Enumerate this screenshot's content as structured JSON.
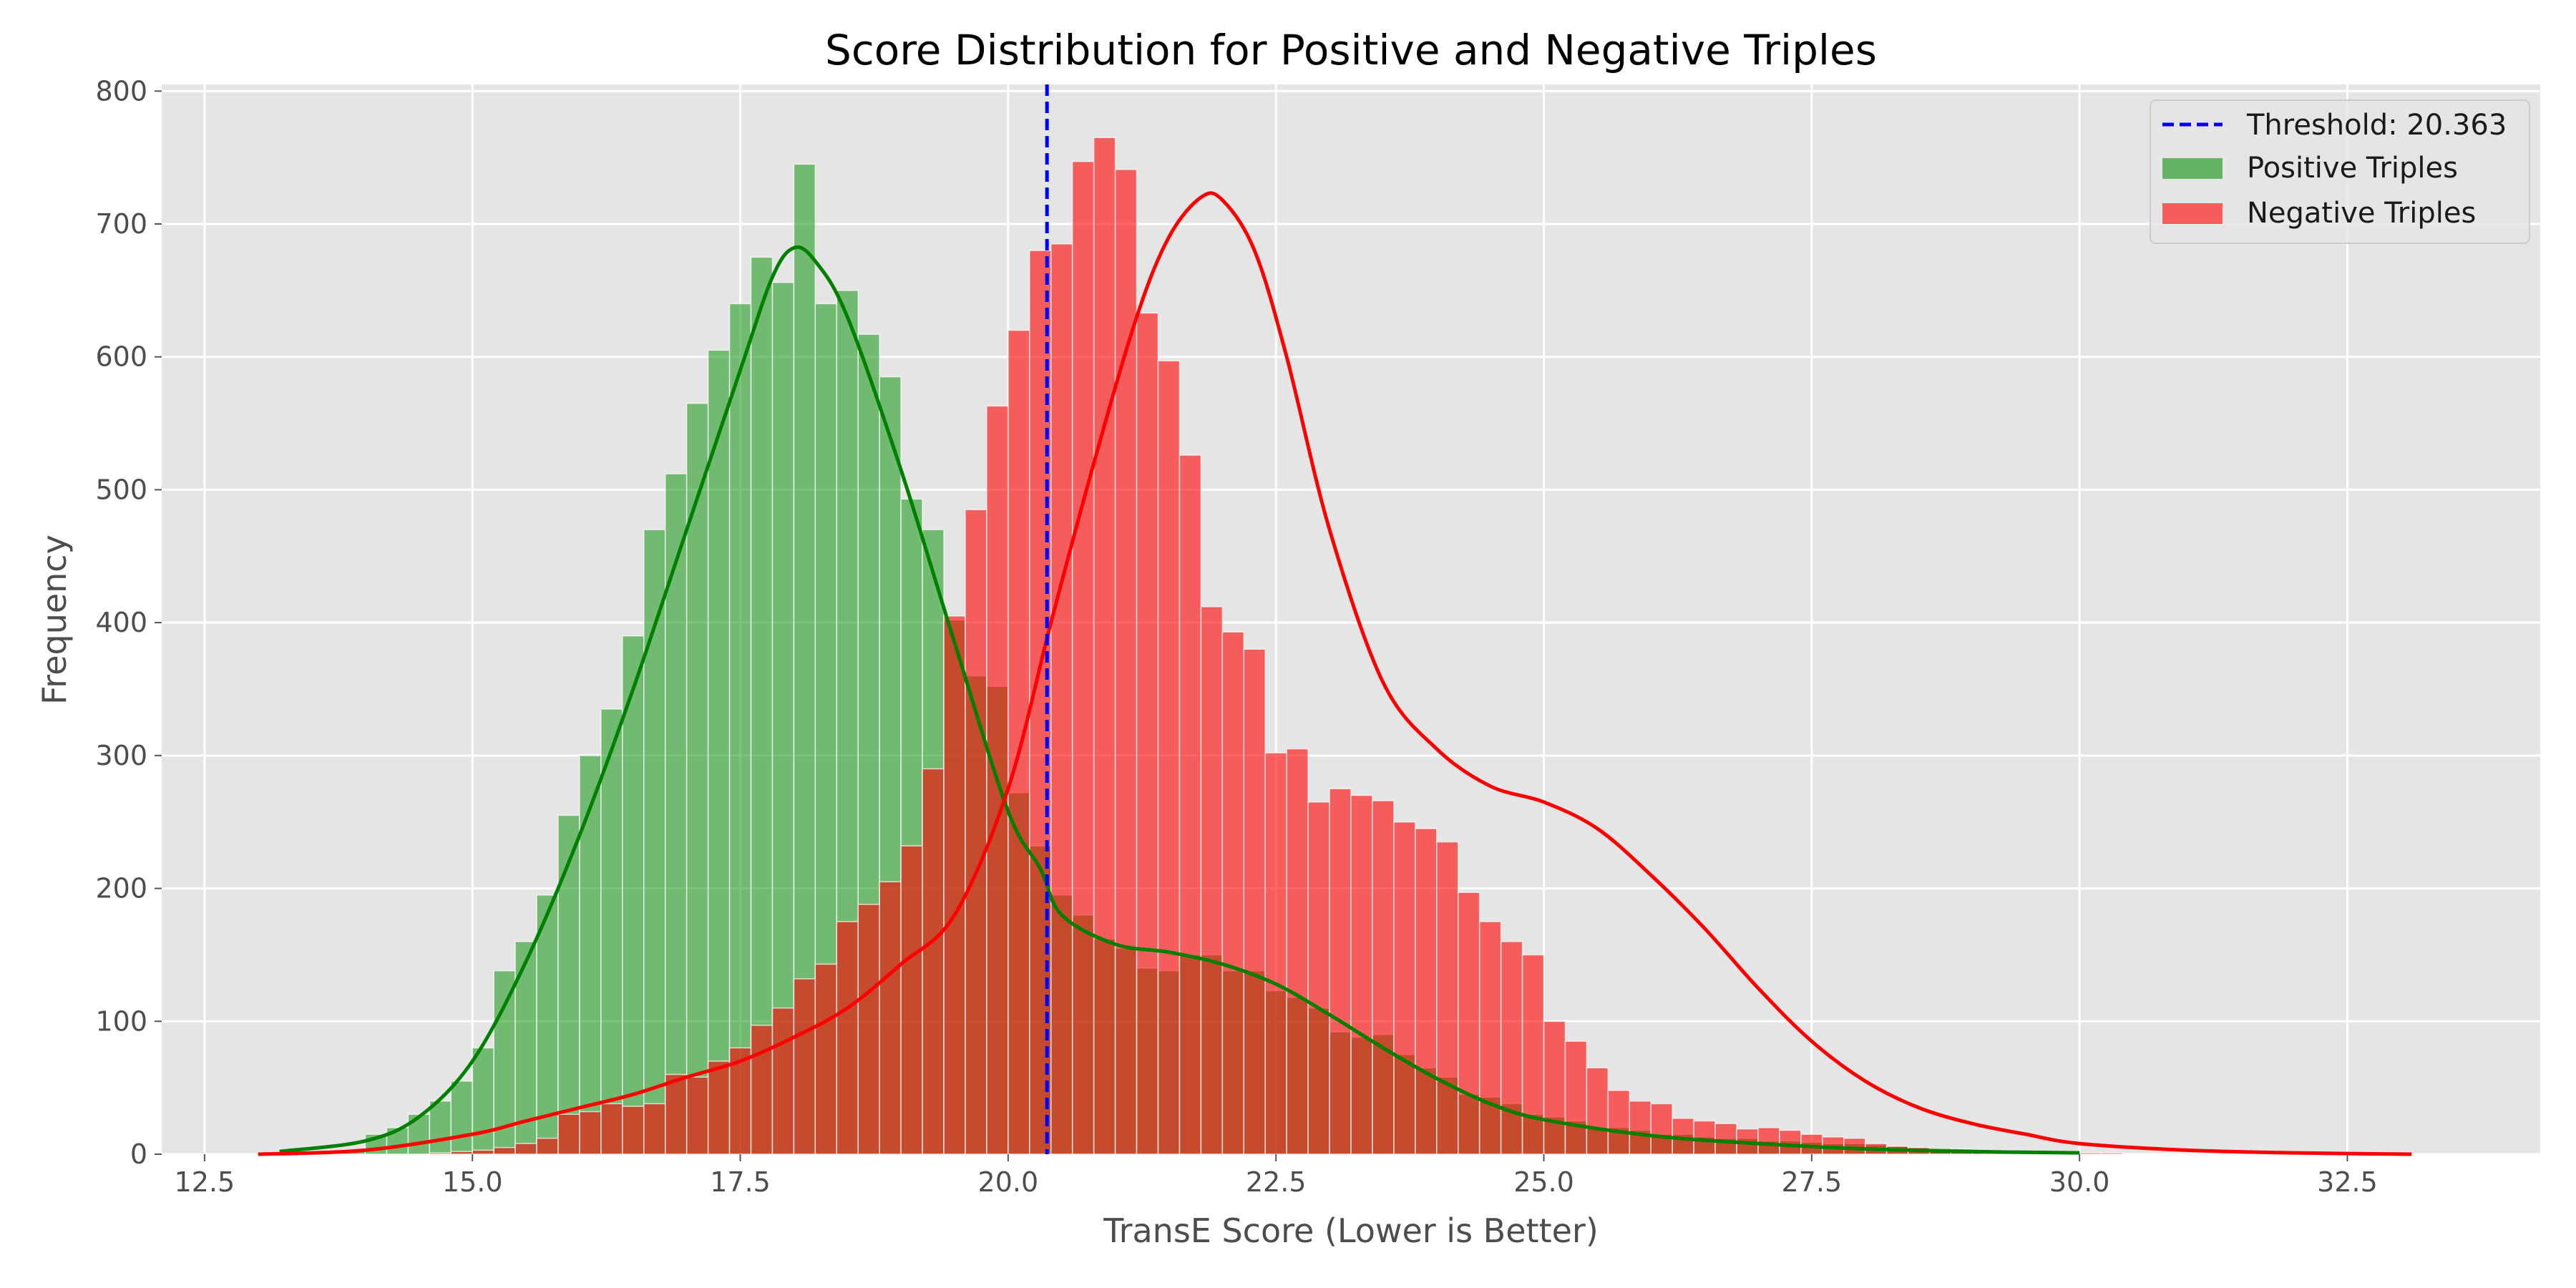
{
  "chart_data": {
    "type": "bar",
    "title": "Score Distribution for Positive and Negative Triples",
    "xlabel": "TransE Score (Lower is Better)",
    "ylabel": "Frequency",
    "xlim": [
      12.1,
      34.3
    ],
    "ylim": [
      0,
      805
    ],
    "xticks": [
      12.5,
      15.0,
      17.5,
      20.0,
      22.5,
      25.0,
      27.5,
      30.0,
      32.5
    ],
    "xtick_labels": [
      "12.5",
      "15.0",
      "17.5",
      "20.0",
      "22.5",
      "25.0",
      "27.5",
      "30.0",
      "32.5"
    ],
    "yticks": [
      0,
      100,
      200,
      300,
      400,
      500,
      600,
      700,
      800
    ],
    "ytick_labels": [
      "0",
      "100",
      "200",
      "300",
      "400",
      "500",
      "600",
      "700",
      "800"
    ],
    "grid": true,
    "legend_position": "top-right",
    "bin_width": 0.2,
    "threshold": {
      "label": "Threshold: 20.363",
      "value": 20.363,
      "color": "#0000ff"
    },
    "series": [
      {
        "name": "Positive Triples",
        "color": "#2ca02c",
        "kde_color": "#008000",
        "bin_start": 13.8,
        "values": [
          3,
          15,
          20,
          30,
          40,
          55,
          80,
          138,
          160,
          195,
          255,
          300,
          335,
          390,
          470,
          512,
          565,
          605,
          640,
          675,
          656,
          745,
          640,
          650,
          617,
          585,
          493,
          470,
          402,
          360,
          352,
          272,
          232,
          195,
          180,
          162,
          155,
          140,
          138,
          150,
          150,
          138,
          138,
          123,
          118,
          110,
          92,
          88,
          90,
          75,
          65,
          58,
          45,
          43,
          38,
          30,
          28,
          25,
          20,
          20,
          18,
          15,
          15,
          13,
          12,
          12,
          10,
          10,
          9,
          8,
          8,
          7,
          6,
          5,
          5,
          4,
          3,
          3,
          2,
          2,
          2,
          1
        ],
        "kde": [
          [
            13.2,
            2
          ],
          [
            14.0,
            10
          ],
          [
            14.5,
            28
          ],
          [
            15.0,
            70
          ],
          [
            15.5,
            145
          ],
          [
            16.0,
            240
          ],
          [
            16.5,
            350
          ],
          [
            17.0,
            470
          ],
          [
            17.5,
            590
          ],
          [
            17.8,
            660
          ],
          [
            18.0,
            682
          ],
          [
            18.2,
            672
          ],
          [
            18.5,
            630
          ],
          [
            19.0,
            515
          ],
          [
            19.5,
            385
          ],
          [
            20.0,
            258
          ],
          [
            20.3,
            215
          ],
          [
            20.5,
            180
          ],
          [
            21.0,
            158
          ],
          [
            21.5,
            152
          ],
          [
            22.0,
            143
          ],
          [
            22.5,
            128
          ],
          [
            23.0,
            105
          ],
          [
            23.5,
            80
          ],
          [
            24.0,
            57
          ],
          [
            24.5,
            38
          ],
          [
            25.0,
            26
          ],
          [
            26.0,
            14
          ],
          [
            27.0,
            8
          ],
          [
            28.0,
            4
          ],
          [
            29.0,
            2
          ],
          [
            30.0,
            1
          ]
        ]
      },
      {
        "name": "Negative Triples",
        "color": "#ff0000",
        "kde_color": "#ff0000",
        "bin_start": 13.8,
        "values": [
          0,
          0,
          0,
          0,
          1,
          2,
          3,
          5,
          8,
          12,
          30,
          32,
          38,
          36,
          38,
          60,
          58,
          70,
          80,
          97,
          110,
          132,
          143,
          175,
          188,
          205,
          232,
          290,
          405,
          485,
          563,
          620,
          680,
          685,
          747,
          765,
          741,
          633,
          597,
          526,
          412,
          393,
          380,
          302,
          305,
          265,
          275,
          270,
          266,
          250,
          245,
          235,
          197,
          175,
          160,
          150,
          100,
          85,
          65,
          48,
          40,
          38,
          27,
          25,
          23,
          19,
          20,
          18,
          15,
          13,
          12,
          8,
          6,
          5,
          4,
          3,
          2,
          2,
          2,
          1,
          1,
          1,
          1,
          0,
          0,
          0,
          0,
          0,
          0,
          0,
          0,
          0,
          0,
          0,
          0,
          0,
          0,
          0
        ],
        "kde": [
          [
            13.0,
            0
          ],
          [
            14.0,
            3
          ],
          [
            15.0,
            15
          ],
          [
            15.5,
            25
          ],
          [
            16.0,
            35
          ],
          [
            16.5,
            45
          ],
          [
            17.0,
            58
          ],
          [
            17.5,
            70
          ],
          [
            18.0,
            88
          ],
          [
            18.5,
            110
          ],
          [
            19.0,
            143
          ],
          [
            19.5,
            180
          ],
          [
            20.0,
            275
          ],
          [
            20.4,
            400
          ],
          [
            20.8,
            520
          ],
          [
            21.2,
            630
          ],
          [
            21.5,
            690
          ],
          [
            21.8,
            720
          ],
          [
            22.0,
            718
          ],
          [
            22.3,
            680
          ],
          [
            22.6,
            600
          ],
          [
            23.0,
            470
          ],
          [
            23.5,
            355
          ],
          [
            24.0,
            305
          ],
          [
            24.5,
            277
          ],
          [
            25.0,
            265
          ],
          [
            25.5,
            245
          ],
          [
            26.0,
            210
          ],
          [
            26.5,
            170
          ],
          [
            27.0,
            125
          ],
          [
            27.5,
            85
          ],
          [
            28.0,
            55
          ],
          [
            28.5,
            35
          ],
          [
            29.0,
            23
          ],
          [
            29.5,
            15
          ],
          [
            30.0,
            8
          ],
          [
            31.0,
            3
          ],
          [
            32.0,
            1
          ],
          [
            33.1,
            0
          ]
        ]
      }
    ]
  }
}
